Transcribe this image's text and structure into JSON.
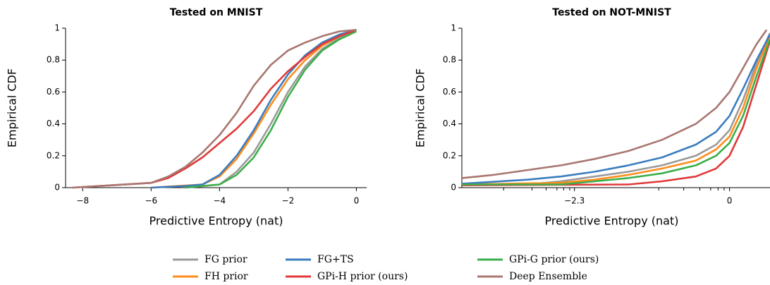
{
  "chart_data": [
    {
      "type": "line",
      "title": "Tested on MNIST",
      "xlabel": "Predictive Entropy (nat)",
      "ylabel": "Empirical CDF",
      "xlim": [
        -8.5,
        0.3
      ],
      "ylim": [
        0,
        1
      ],
      "xticks": [
        {
          "value": -8,
          "label": "−8"
        },
        {
          "value": -6,
          "label": "−6"
        },
        {
          "value": -4,
          "label": "−4"
        },
        {
          "value": -2,
          "label": "−2"
        },
        0
      ],
      "yticks": [
        0,
        0.2,
        0.4,
        0.6,
        0.8,
        1
      ],
      "series": [
        {
          "name": "FG prior",
          "color": "#9a9a9a",
          "x": [
            -5,
            -4,
            -3.5,
            -3,
            -2.5,
            -2,
            -1.5,
            -1,
            -0.5,
            0
          ],
          "values": [
            0,
            0.02,
            0.1,
            0.22,
            0.4,
            0.6,
            0.76,
            0.87,
            0.94,
            0.99
          ]
        },
        {
          "name": "FH prior",
          "color": "#ff8c1a",
          "x": [
            -6,
            -4.5,
            -4,
            -3.5,
            -3,
            -2.5,
            -2,
            -1.5,
            -1,
            -0.5,
            0
          ],
          "values": [
            0,
            0.02,
            0.07,
            0.18,
            0.34,
            0.52,
            0.68,
            0.8,
            0.89,
            0.95,
            0.99
          ]
        },
        {
          "name": "FG+TS",
          "color": "#3a7dbf",
          "x": [
            -6,
            -5,
            -4.5,
            -4,
            -3.5,
            -3,
            -2.5,
            -2,
            -1.5,
            -1,
            -0.5,
            0
          ],
          "values": [
            0,
            0.01,
            0.02,
            0.08,
            0.2,
            0.36,
            0.55,
            0.71,
            0.83,
            0.91,
            0.96,
            0.99
          ]
        },
        {
          "name": "GPi-H prior (ours)",
          "color": "#e0393a",
          "x": [
            -8.3,
            -6,
            -5.5,
            -5,
            -4.5,
            -4,
            -3.5,
            -3,
            -2.5,
            -2,
            -1.5,
            -1,
            -0.5,
            0
          ],
          "values": [
            0,
            0.03,
            0.06,
            0.12,
            0.19,
            0.28,
            0.37,
            0.48,
            0.62,
            0.73,
            0.82,
            0.9,
            0.95,
            0.99
          ]
        },
        {
          "name": "GPi-G prior (ours)",
          "color": "#3cae4a",
          "x": [
            -5,
            -4,
            -3.5,
            -3,
            -2.5,
            -2,
            -1.5,
            -1,
            -0.5,
            0
          ],
          "values": [
            0,
            0.02,
            0.08,
            0.19,
            0.36,
            0.57,
            0.74,
            0.86,
            0.93,
            0.98
          ]
        },
        {
          "name": "Deep Ensemble",
          "color": "#a97670",
          "x": [
            -8.3,
            -6,
            -5.5,
            -5,
            -4.5,
            -4,
            -3.5,
            -3,
            -2.5,
            -2,
            -1.5,
            -1,
            -0.5,
            0
          ],
          "values": [
            0,
            0.03,
            0.07,
            0.13,
            0.22,
            0.33,
            0.47,
            0.64,
            0.77,
            0.86,
            0.91,
            0.95,
            0.98,
            0.99
          ]
        }
      ]
    },
    {
      "type": "line",
      "title": "Tested on NOT-MNIST",
      "xlabel": "Predictive Entropy (nat)",
      "ylabel": "Empirical CDF",
      "xlim": [
        -3.97,
        0.6
      ],
      "ylim": [
        0,
        1
      ],
      "xticks": [
        {
          "value": -2.3,
          "label": "−2.3"
        },
        0
      ],
      "xminorticks": [
        -3.35,
        -2.93,
        -2.72,
        -2.56,
        -2.46,
        -2.37,
        -1.05,
        -0.68,
        -0.44,
        -0.28,
        -0.17,
        -0.08
      ],
      "yticks": [
        0,
        0.2,
        0.4,
        0.6,
        0.8,
        1
      ],
      "series": [
        {
          "color": "#9a9a9a",
          "x": [
            -3.97,
            -3,
            -2.5,
            -2,
            -1.5,
            -1,
            -0.5,
            -0.2,
            0,
            0.2,
            0.4,
            0.6
          ],
          "values": [
            0.02,
            0.02,
            0.04,
            0.07,
            0.1,
            0.14,
            0.2,
            0.27,
            0.36,
            0.55,
            0.78,
            0.97
          ]
        },
        {
          "color": "#ff8c1a",
          "x": [
            -3.97,
            -2.5,
            -2,
            -1.5,
            -1,
            -0.5,
            -0.2,
            0,
            0.2,
            0.4,
            0.6
          ],
          "values": [
            0.02,
            0.03,
            0.05,
            0.08,
            0.12,
            0.17,
            0.24,
            0.32,
            0.5,
            0.75,
            0.95
          ]
        },
        {
          "color": "#3a7dbf",
          "x": [
            -3.97,
            -3,
            -2.5,
            -2,
            -1.5,
            -1,
            -0.5,
            -0.2,
            0,
            0.2,
            0.4,
            0.6
          ],
          "values": [
            0.025,
            0.05,
            0.07,
            0.1,
            0.14,
            0.19,
            0.27,
            0.35,
            0.45,
            0.62,
            0.8,
            0.96
          ]
        },
        {
          "color": "#e0393a",
          "x": [
            -3.97,
            -1.5,
            -1,
            -0.5,
            -0.2,
            0,
            0.2,
            0.4,
            0.6
          ],
          "values": [
            0.015,
            0.02,
            0.04,
            0.07,
            0.12,
            0.2,
            0.38,
            0.65,
            0.92
          ]
        },
        {
          "color": "#3cae4a",
          "x": [
            -3.97,
            -2.5,
            -2,
            -1.5,
            -1,
            -0.5,
            -0.2,
            0,
            0.2,
            0.4,
            0.6
          ],
          "values": [
            0.02,
            0.02,
            0.04,
            0.06,
            0.09,
            0.14,
            0.2,
            0.28,
            0.45,
            0.7,
            0.93
          ]
        },
        {
          "color": "#a97670",
          "x": [
            -3.97,
            -3.5,
            -3,
            -2.5,
            -2,
            -1.5,
            -1,
            -0.5,
            -0.2,
            0,
            0.2,
            0.4,
            0.55
          ],
          "values": [
            0.06,
            0.08,
            0.11,
            0.14,
            0.18,
            0.23,
            0.3,
            0.4,
            0.5,
            0.6,
            0.75,
            0.9,
            0.99
          ]
        }
      ]
    }
  ]
}
